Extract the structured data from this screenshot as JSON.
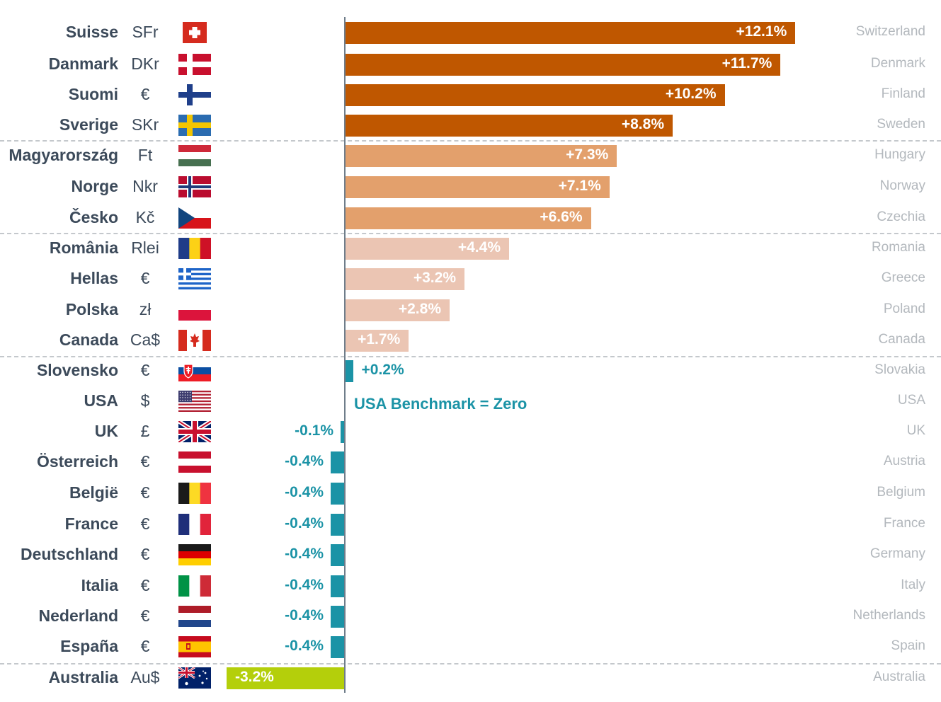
{
  "chart_data": {
    "type": "bar",
    "orientation": "horizontal",
    "benchmark_label": "USA Benchmark = Zero",
    "baseline": 0,
    "xlim": [
      -7.0,
      14.4
    ],
    "rows": [
      {
        "native": "Suisse",
        "currency": "SFr",
        "english": "Switzerland",
        "value": 12.1,
        "label": "+12.1%",
        "group": 1,
        "flag": "switzerland-flag-icon"
      },
      {
        "native": "Danmark",
        "currency": "DKr",
        "english": "Denmark",
        "value": 11.7,
        "label": "+11.7%",
        "group": 1,
        "flag": "denmark-flag-icon"
      },
      {
        "native": "Suomi",
        "currency": "€",
        "english": "Finland",
        "value": 10.2,
        "label": "+10.2%",
        "group": 1,
        "flag": "finland-flag-icon"
      },
      {
        "native": "Sverige",
        "currency": "SKr",
        "english": "Sweden",
        "value": 8.8,
        "label": "+8.8%",
        "group": 1,
        "flag": "sweden-flag-icon"
      },
      {
        "native": "Magyarország",
        "currency": "Ft",
        "english": "Hungary",
        "value": 7.3,
        "label": "+7.3%",
        "group": 2,
        "flag": "hungary-flag-icon"
      },
      {
        "native": "Norge",
        "currency": "Nkr",
        "english": "Norway",
        "value": 7.1,
        "label": "+7.1%",
        "group": 2,
        "flag": "norway-flag-icon"
      },
      {
        "native": "Česko",
        "currency": "Kč",
        "english": "Czechia",
        "value": 6.6,
        "label": "+6.6%",
        "group": 2,
        "flag": "czechia-flag-icon"
      },
      {
        "native": "România",
        "currency": "Rlei",
        "english": "Romania",
        "value": 4.4,
        "label": "+4.4%",
        "group": 3,
        "flag": "romania-flag-icon"
      },
      {
        "native": "Hellas",
        "currency": "€",
        "english": "Greece",
        "value": 3.2,
        "label": "+3.2%",
        "group": 3,
        "flag": "greece-flag-icon"
      },
      {
        "native": "Polska",
        "currency": "zł",
        "english": "Poland",
        "value": 2.8,
        "label": "+2.8%",
        "group": 3,
        "flag": "poland-flag-icon"
      },
      {
        "native": "Canada",
        "currency": "Ca$",
        "english": "Canada",
        "value": 1.7,
        "label": "+1.7%",
        "group": 3,
        "flag": "canada-flag-icon"
      },
      {
        "native": "Slovensko",
        "currency": "€",
        "english": "Slovakia",
        "value": 0.2,
        "label": "+0.2%",
        "group": 4,
        "flag": "slovakia-flag-icon"
      },
      {
        "native": "USA",
        "currency": "$",
        "english": "USA",
        "value": 0.0,
        "label": null,
        "group": 4,
        "flag": "usa-flag-icon"
      },
      {
        "native": "UK",
        "currency": "£",
        "english": "UK",
        "value": -0.1,
        "label": "-0.1%",
        "group": 4,
        "flag": "uk-flag-icon"
      },
      {
        "native": "Österreich",
        "currency": "€",
        "english": "Austria",
        "value": -0.4,
        "label": "-0.4%",
        "group": 4,
        "flag": "austria-flag-icon"
      },
      {
        "native": "België",
        "currency": "€",
        "english": "Belgium",
        "value": -0.4,
        "label": "-0.4%",
        "group": 4,
        "flag": "belgium-flag-icon"
      },
      {
        "native": "France",
        "currency": "€",
        "english": "France",
        "value": -0.4,
        "label": "-0.4%",
        "group": 4,
        "flag": "france-flag-icon"
      },
      {
        "native": "Deutschland",
        "currency": "€",
        "english": "Germany",
        "value": -0.4,
        "label": "-0.4%",
        "group": 4,
        "flag": "germany-flag-icon"
      },
      {
        "native": "Italia",
        "currency": "€",
        "english": "Italy",
        "value": -0.4,
        "label": "-0.4%",
        "group": 4,
        "flag": "italy-flag-icon"
      },
      {
        "native": "Nederland",
        "currency": "€",
        "english": "Netherlands",
        "value": -0.4,
        "label": "-0.4%",
        "group": 4,
        "flag": "netherlands-flag-icon"
      },
      {
        "native": "España",
        "currency": "€",
        "english": "Spain",
        "value": -0.4,
        "label": "-0.4%",
        "group": 4,
        "flag": "spain-flag-icon"
      },
      {
        "native": "Australia",
        "currency": "Au$",
        "english": "Australia",
        "value": -3.2,
        "label": "-3.2%",
        "group": 5,
        "flag": "australia-flag-icon"
      }
    ]
  },
  "colors": {
    "group1": "#bf5700",
    "group2": "#e3a06c",
    "group3": "#ebc5b3",
    "group4": "#1b93a6",
    "group5": "#b4cf0b",
    "label_light": "#ffffff",
    "label_teal": "#1b93a6"
  }
}
